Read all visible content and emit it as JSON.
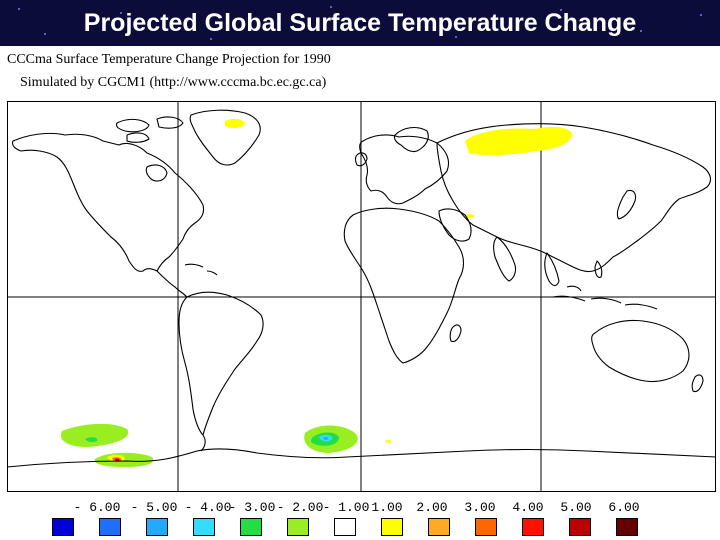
{
  "slide": {
    "title": "Projected Global Surface Temperature Change"
  },
  "map": {
    "title_line1": "CCCma Surface Temperature Change Projection for 1990",
    "title_line2": "Simulated by CGCM1 (http://www.cccma.bc.ec.gc.ca)",
    "projection": "equirectangular world map, Pacific-Atlantic centred, with gridlines",
    "anomaly_regions": [
      {
        "region": "Greenland coast",
        "color": "#ffff00",
        "category": "1.00"
      },
      {
        "region": "Northern Siberia",
        "color": "#ffff00",
        "category": "1.00"
      },
      {
        "region": "Central Asia",
        "color": "#ffff00",
        "category": "1.00"
      },
      {
        "region": "Southern Ocean south of Pacific",
        "color": "#99ee22",
        "category": "-2.00"
      },
      {
        "region": "Antarctic coast, Pacific sector",
        "color": "#ff3300",
        "category": "4.00"
      },
      {
        "region": "Weddell Sea",
        "color": "#33ddff",
        "category": "-4.00"
      },
      {
        "region": "East Antarctic coast",
        "color": "#ffff00",
        "category": "1.00"
      }
    ]
  },
  "legend": {
    "labels": [
      "- 6.00",
      "- 5.00",
      "- 4.00",
      "- 3.00",
      "- 2.00",
      "- 1.00",
      "1.00",
      "2.00",
      "3.00",
      "4.00",
      "5.00",
      "6.00"
    ],
    "colors": [
      "#0000dd",
      "#1e6eff",
      "#22aaff",
      "#33ddff",
      "#22dd44",
      "#99ee22",
      "#ffffff",
      "#ffff00",
      "#ffaa22",
      "#ff6600",
      "#ff1100",
      "#bb0000",
      "#660000"
    ]
  }
}
